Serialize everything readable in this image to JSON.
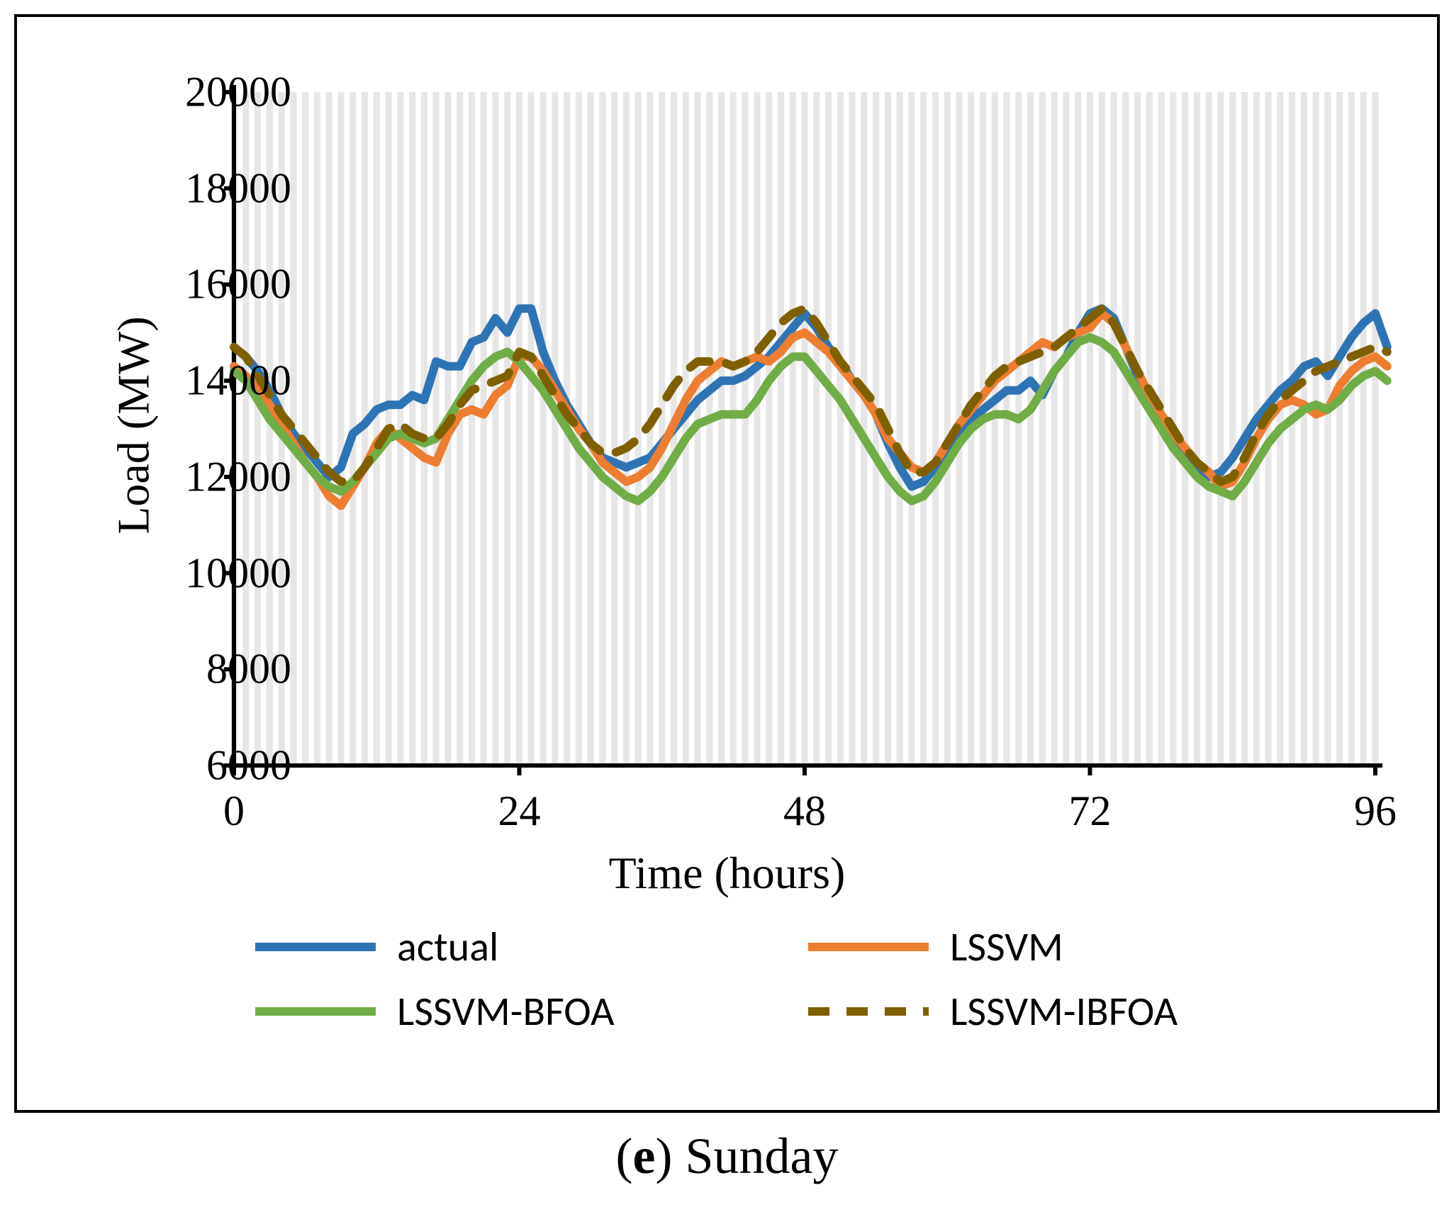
{
  "caption_prefix": "(e)",
  "caption_text": "Sunday",
  "chart": {
    "type": "line",
    "xlabel": "Time (hours)",
    "ylabel": "Load (MW)",
    "xlabel_fontsize": 64,
    "ylabel_fontsize": 64,
    "tick_fontsize": 60,
    "xlim": [
      0,
      96
    ],
    "ylim": [
      6000,
      20000
    ],
    "xtick_step": 24,
    "ytick_step": 2000,
    "xticks": [
      0,
      24,
      48,
      72,
      96
    ],
    "yticks": [
      6000,
      8000,
      10000,
      12000,
      14000,
      16000,
      18000,
      20000
    ],
    "background_color": "#ffffff",
    "vbar_color": "#e6e6e6",
    "axis_color": "#000000",
    "axis_width": 6,
    "tick_length": 14,
    "vbar_count": 97,
    "line_width": 12,
    "dash_pattern": "30 24",
    "legend": {
      "font_family": "Calibri, Arial, sans-serif",
      "fontsize": 58,
      "swatch_width": 170,
      "swatch_stroke": 12
    },
    "series": [
      {
        "name": "actual",
        "label": "actual",
        "color": "#2e74b5",
        "dash": null,
        "values": [
          14700,
          14500,
          14200,
          13800,
          13300,
          12900,
          12600,
          12300,
          12000,
          12200,
          12900,
          13100,
          13400,
          13500,
          13500,
          13700,
          13600,
          14400,
          14300,
          14300,
          14800,
          14900,
          15300,
          15000,
          15500,
          15500,
          14600,
          14000,
          13500,
          13100,
          12700,
          12400,
          12300,
          12200,
          12300,
          12400,
          12700,
          13000,
          13300,
          13600,
          13800,
          14000,
          14000,
          14100,
          14300,
          14500,
          14800,
          15100,
          15400,
          15100,
          14700,
          14400,
          14000,
          13700,
          13300,
          12700,
          12200,
          11800,
          11900,
          12200,
          12500,
          12900,
          13200,
          13400,
          13600,
          13800,
          13800,
          14000,
          13700,
          14200,
          14500,
          15000,
          15400,
          15500,
          15300,
          14700,
          14100,
          13700,
          13300,
          12900,
          12500,
          12200,
          12000,
          12100,
          12400,
          12800,
          13200,
          13500,
          13800,
          14000,
          14300,
          14400,
          14100,
          14500,
          14900,
          15200,
          15400,
          14700
        ]
      },
      {
        "name": "lssvm",
        "label": "LSSVM",
        "color": "#ed7d31",
        "dash": null,
        "values": [
          14300,
          14100,
          13800,
          13500,
          13100,
          12700,
          12300,
          12000,
          11600,
          11400,
          11800,
          12200,
          12700,
          13000,
          12800,
          12600,
          12400,
          12300,
          12900,
          13300,
          13400,
          13300,
          13700,
          13900,
          14500,
          14500,
          14200,
          13800,
          13400,
          13000,
          12700,
          12300,
          12100,
          11900,
          12000,
          12200,
          12600,
          13100,
          13600,
          14000,
          14200,
          14400,
          14300,
          14400,
          14500,
          14400,
          14600,
          14900,
          15000,
          14800,
          14600,
          14300,
          14000,
          13700,
          13300,
          12800,
          12500,
          12200,
          12100,
          12300,
          12700,
          13100,
          13400,
          13700,
          14000,
          14200,
          14400,
          14600,
          14800,
          14700,
          14900,
          15000,
          15100,
          15400,
          15200,
          14700,
          14200,
          13700,
          13300,
          12900,
          12600,
          12300,
          12100,
          11800,
          11900,
          12300,
          12800,
          13200,
          13500,
          13600,
          13500,
          13300,
          13400,
          13900,
          14200,
          14400,
          14500,
          14300
        ]
      },
      {
        "name": "lssvm_bfoa",
        "label": "LSSVM-BFOA",
        "color": "#70ad47",
        "dash": null,
        "values": [
          14200,
          14000,
          13600,
          13200,
          12900,
          12600,
          12300,
          12000,
          11800,
          11700,
          11900,
          12200,
          12500,
          12800,
          12900,
          12800,
          12700,
          12800,
          13200,
          13600,
          14000,
          14300,
          14500,
          14600,
          14400,
          14100,
          13800,
          13400,
          13000,
          12600,
          12300,
          12000,
          11800,
          11600,
          11500,
          11700,
          12000,
          12400,
          12800,
          13100,
          13200,
          13300,
          13300,
          13300,
          13600,
          14000,
          14300,
          14500,
          14500,
          14200,
          13900,
          13600,
          13200,
          12800,
          12400,
          12000,
          11700,
          11500,
          11600,
          11900,
          12300,
          12700,
          13000,
          13200,
          13300,
          13300,
          13200,
          13400,
          13800,
          14200,
          14500,
          14800,
          14900,
          14800,
          14600,
          14200,
          13800,
          13400,
          13000,
          12600,
          12300,
          12000,
          11800,
          11700,
          11600,
          11900,
          12300,
          12700,
          13000,
          13200,
          13400,
          13500,
          13400,
          13600,
          13900,
          14100,
          14200,
          14000
        ]
      },
      {
        "name": "lssvm_ibfoa",
        "label": "LSSVM-IBFOA",
        "color": "#7f6000",
        "dash": "30 24",
        "values": [
          14700,
          14500,
          14100,
          13700,
          13300,
          13000,
          12700,
          12400,
          12100,
          11900,
          11900,
          12200,
          12600,
          13000,
          13100,
          12900,
          12800,
          12800,
          13100,
          13500,
          13800,
          13900,
          14000,
          14100,
          14600,
          14500,
          14100,
          13700,
          13300,
          13000,
          12700,
          12500,
          12500,
          12600,
          12800,
          13100,
          13500,
          13900,
          14200,
          14400,
          14400,
          14400,
          14300,
          14400,
          14600,
          14900,
          15200,
          15400,
          15500,
          15200,
          14800,
          14400,
          14100,
          13800,
          13500,
          13000,
          12500,
          12100,
          12100,
          12300,
          12700,
          13100,
          13500,
          13800,
          14100,
          14300,
          14400,
          14500,
          14600,
          14700,
          14900,
          15100,
          15300,
          15500,
          15200,
          14700,
          14200,
          13800,
          13400,
          13000,
          12600,
          12300,
          12100,
          11900,
          12000,
          12400,
          12900,
          13300,
          13600,
          13800,
          14000,
          14200,
          14300,
          14400,
          14500,
          14600,
          14700,
          14600
        ]
      }
    ]
  }
}
